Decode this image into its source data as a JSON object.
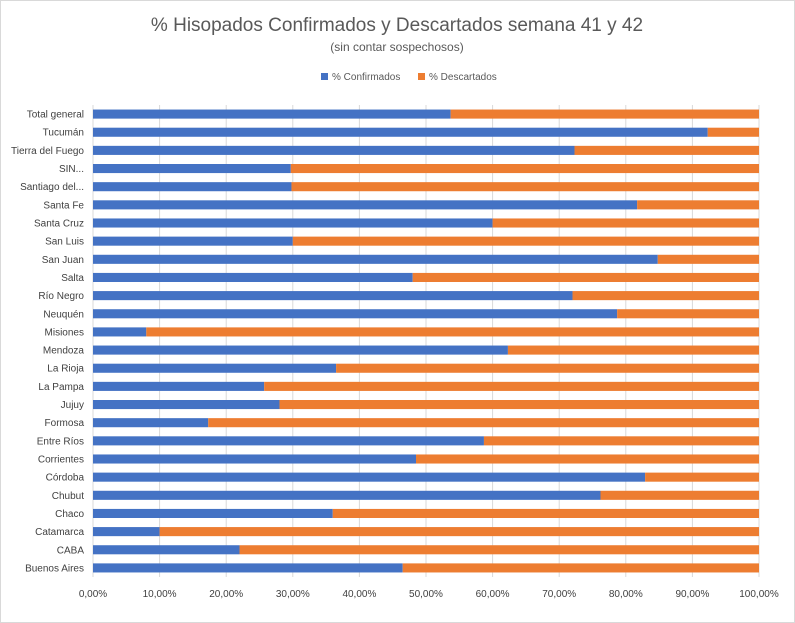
{
  "chart_data": {
    "type": "bar",
    "orientation": "horizontal",
    "stacked": "percent",
    "title": "% Hisopados Confirmados y Descartados semana 41 y 42",
    "subtitle": "(sin contar sospechosos)",
    "legend_position": "top",
    "grid": true,
    "xlim": [
      0,
      100
    ],
    "x_ticks": [
      "0,00%",
      "10,00%",
      "20,00%",
      "30,00%",
      "40,00%",
      "50,00%",
      "60,00%",
      "70,00%",
      "80,00%",
      "90,00%",
      "100,00%"
    ],
    "categories": [
      "Total general",
      "Tucumán",
      "Tierra del Fuego",
      "SIN...",
      "Santiago del...",
      "Santa Fe",
      "Santa Cruz",
      "San Luis",
      "San Juan",
      "Salta",
      "Río Negro",
      "Neuquén",
      "Misiones",
      "Mendoza",
      "La Rioja",
      "La Pampa",
      "Jujuy",
      "Formosa",
      "Entre Ríos",
      "Corrientes",
      "Córdoba",
      "Chubut",
      "Chaco",
      "Catamarca",
      "CABA",
      "Buenos Aires"
    ],
    "series": [
      {
        "name": "% Confirmados",
        "color": "#4472c4",
        "values": [
          53.7,
          92.3,
          72.3,
          29.7,
          29.8,
          81.7,
          60.0,
          30.0,
          84.8,
          48.0,
          72.0,
          78.7,
          8.0,
          62.3,
          36.5,
          25.7,
          28.0,
          17.3,
          58.7,
          48.5,
          82.9,
          76.2,
          36.0,
          10.0,
          22.0,
          46.5
        ]
      },
      {
        "name": "% Descartados",
        "color": "#ed7d31",
        "values": [
          46.3,
          7.7,
          27.7,
          70.3,
          70.2,
          18.3,
          40.0,
          70.0,
          15.2,
          52.0,
          28.0,
          21.3,
          92.0,
          37.7,
          63.5,
          74.3,
          72.0,
          82.7,
          41.3,
          51.5,
          17.1,
          23.8,
          64.0,
          90.0,
          78.0,
          53.5
        ]
      }
    ]
  }
}
